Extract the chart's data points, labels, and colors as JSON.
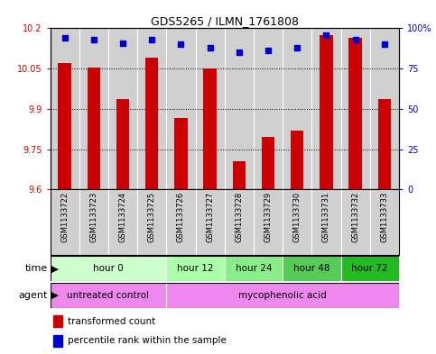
{
  "title": "GDS5265 / ILMN_1761808",
  "samples": [
    "GSM1133722",
    "GSM1133723",
    "GSM1133724",
    "GSM1133725",
    "GSM1133726",
    "GSM1133727",
    "GSM1133728",
    "GSM1133729",
    "GSM1133730",
    "GSM1133731",
    "GSM1133732",
    "GSM1133733"
  ],
  "transformed_counts": [
    10.07,
    10.055,
    9.935,
    10.09,
    9.865,
    10.05,
    9.705,
    9.795,
    9.82,
    10.175,
    10.165,
    9.935
  ],
  "percentile_ranks": [
    94,
    93,
    91,
    93,
    90,
    88,
    85,
    86,
    88,
    96,
    93,
    90
  ],
  "ymin": 9.6,
  "ymax": 10.2,
  "yticks": [
    9.6,
    9.75,
    9.9,
    10.05,
    10.2
  ],
  "ytick_labels": [
    "9.6",
    "9.75",
    "9.9",
    "10.05",
    "10.2"
  ],
  "right_yticks": [
    0,
    25,
    50,
    75,
    100
  ],
  "right_ytick_labels": [
    "0",
    "25",
    "50",
    "75",
    "100%"
  ],
  "bar_color": "#cc0000",
  "dot_color": "#0000cc",
  "bar_width": 0.45,
  "time_groups": [
    {
      "label": "hour 0",
      "start": 0,
      "end": 3,
      "color": "#ccffcc"
    },
    {
      "label": "hour 12",
      "start": 4,
      "end": 5,
      "color": "#aaffaa"
    },
    {
      "label": "hour 24",
      "start": 6,
      "end": 7,
      "color": "#88ee88"
    },
    {
      "label": "hour 48",
      "start": 8,
      "end": 9,
      "color": "#55cc55"
    },
    {
      "label": "hour 72",
      "start": 10,
      "end": 11,
      "color": "#22bb22"
    }
  ],
  "agent_groups": [
    {
      "label": "untreated control",
      "start": 0,
      "end": 3,
      "color": "#ee88ee"
    },
    {
      "label": "mycophenolic acid",
      "start": 4,
      "end": 11,
      "color": "#ee88ee"
    }
  ],
  "legend_red_label": "transformed count",
  "legend_blue_label": "percentile rank within the sample",
  "col_bg": "#d0d0d0",
  "axis_color_left": "#cc0000",
  "axis_color_right": "#0000cc",
  "fig_width": 4.83,
  "fig_height": 3.93,
  "dpi": 100
}
